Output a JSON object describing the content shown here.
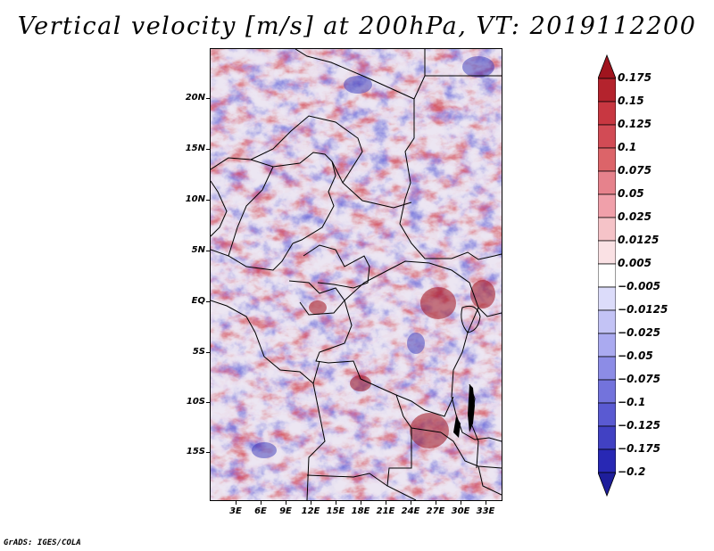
{
  "title": "Vertical velocity [m/s] at 200hPa, VT: 2019112200",
  "credit": "GrADS: IGES/COLA",
  "map": {
    "lat_labels": [
      "20N",
      "15N",
      "10N",
      "5N",
      "EQ",
      "5S",
      "10S",
      "15S"
    ],
    "lon_labels": [
      "3E",
      "6E",
      "9E",
      "12E",
      "15E",
      "18E",
      "21E",
      "24E",
      "27E",
      "30E",
      "33E"
    ],
    "field": "vertical velocity",
    "colormap": "blue-white-red diverging"
  },
  "colorbar": {
    "labels": [
      "0.175",
      "0.15",
      "0.125",
      "0.1",
      "0.075",
      "0.05",
      "0.025",
      "0.0125",
      "0.005",
      "−0.005",
      "−0.0125",
      "−0.025",
      "−0.05",
      "−0.075",
      "−0.1",
      "−0.125",
      "−0.175",
      "−0.2"
    ],
    "colors": [
      "#a0141e",
      "#b4232d",
      "#c83741",
      "#d24b55",
      "#dc6469",
      "#e6828c",
      "#f0a0aa",
      "#f5c3c8",
      "#fae1e4",
      "#ffffff",
      "#dcdcfa",
      "#c3c3f5",
      "#aaaaf0",
      "#8c8ce6",
      "#7373dc",
      "#5a5ad2",
      "#4141c3",
      "#2828b4",
      "#1e1e9b"
    ]
  }
}
